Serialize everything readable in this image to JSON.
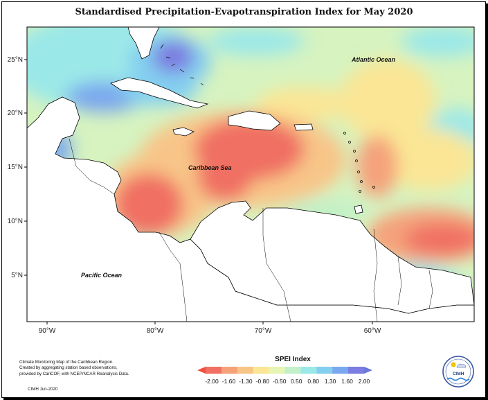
{
  "title": "Standardised Precipitation-Evapotranspiration Index for May 2020",
  "map": {
    "lat_labels": [
      "25°N",
      "20°N",
      "15°N",
      "10°N",
      "5°N"
    ],
    "lon_labels": [
      "90°W",
      "80°W",
      "70°W",
      "60°W"
    ],
    "region_labels": {
      "atlantic": "Atlantic Ocean",
      "caribbean": "Caribbean Sea",
      "pacific": "Pacific Ocean"
    }
  },
  "legend": {
    "title": "SPEI Index",
    "ticks": [
      "-2.00",
      "-1.60",
      "-1.30",
      "-0.80",
      "-0.50",
      "0.50",
      "0.80",
      "1.30",
      "1.60",
      "2.00"
    ],
    "colors": [
      "#f07064",
      "#f5a27a",
      "#f8c588",
      "#fae695",
      "#e6f5b4",
      "#c2f0c8",
      "#9be8e8",
      "#84cff0",
      "#7aa8ee",
      "#7b7de0"
    ]
  },
  "credits": {
    "line1": "Climate Monitoring Map of the Caribbean Region.",
    "line2": "Created by aggregating station based observations,",
    "line3": "provided by CariCOF, with NCEP/NCAR Reanalysis Data.",
    "date": "CIMH Jun-2020"
  },
  "logo": {
    "text": "CIMH"
  }
}
